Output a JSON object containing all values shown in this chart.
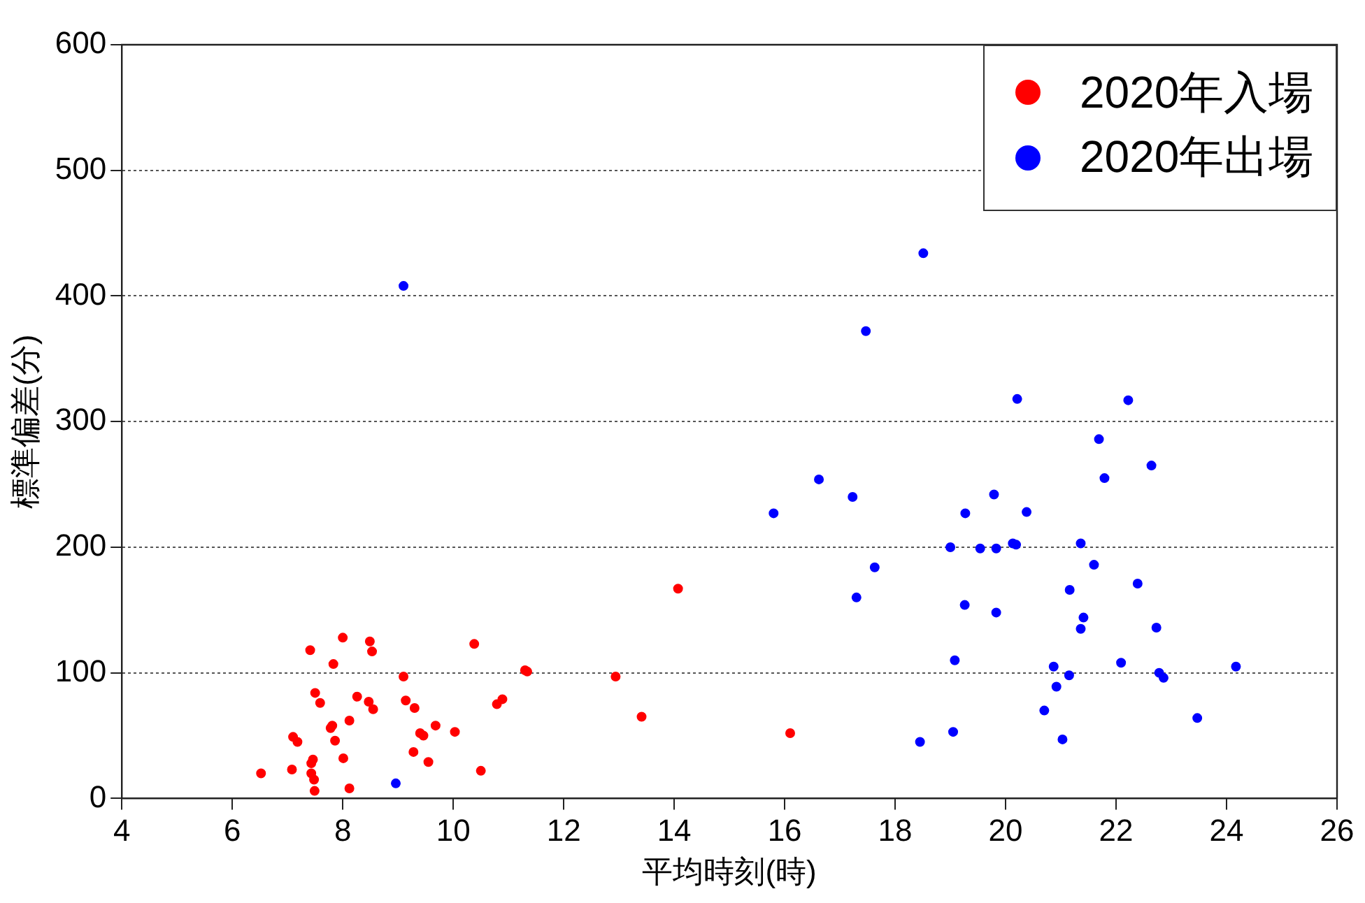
{
  "chart_data": {
    "type": "scatter",
    "xlabel": "平均時刻(時)",
    "ylabel": "標準偏差(分)",
    "xlim": [
      4,
      26
    ],
    "xticks": [
      4,
      6,
      8,
      10,
      12,
      14,
      16,
      18,
      20,
      22,
      24,
      26
    ],
    "ylim": [
      0,
      600
    ],
    "yticks": [
      0,
      100,
      200,
      300,
      400,
      500,
      600
    ],
    "grid": "y",
    "legend": "top right",
    "marker": "circle",
    "series": [
      {
        "name": "2020年入場",
        "color": "#ff0000",
        "x": [
          6.52,
          7.08,
          7.1,
          7.18,
          7.41,
          7.43,
          7.46,
          7.43,
          7.48,
          7.49,
          7.5,
          7.59,
          7.83,
          8.0,
          7.81,
          7.78,
          7.86,
          8.12,
          8.01,
          8.12,
          8.26,
          8.49,
          8.53,
          8.47,
          8.55,
          9.1,
          9.14,
          9.3,
          9.28,
          9.4,
          9.46,
          9.55,
          9.68,
          10.03,
          10.38,
          10.5,
          10.79,
          10.89,
          11.3,
          11.34,
          12.94,
          14.07,
          13.41,
          16.1
        ],
        "values": [
          20,
          23,
          49,
          45,
          118,
          28,
          31,
          20,
          15,
          6,
          84,
          76,
          107,
          128,
          58,
          56,
          46,
          62,
          32,
          8,
          81,
          125,
          117,
          77,
          71,
          97,
          78,
          72,
          37,
          52,
          50,
          29,
          58,
          53,
          123,
          22,
          75,
          79,
          102,
          101,
          97,
          167,
          65,
          52
        ]
      },
      {
        "name": "2020年出場",
        "color": "#0000ff",
        "x": [
          8.96,
          9.1,
          18.51,
          17.47,
          20.21,
          16.62,
          17.23,
          15.8,
          22.22,
          21.69,
          22.64,
          21.79,
          19.79,
          19.27,
          20.38,
          19.0,
          19.54,
          19.83,
          20.13,
          20.19,
          21.36,
          21.6,
          22.39,
          21.16,
          19.26,
          19.83,
          21.41,
          21.36,
          22.73,
          19.08,
          20.87,
          22.09,
          24.17,
          22.78,
          22.86,
          21.15,
          20.92,
          20.7,
          23.47,
          19.05,
          18.45,
          21.03,
          17.63,
          17.3
        ],
        "values": [
          12,
          408,
          434,
          372,
          318,
          254,
          240,
          227,
          317,
          286,
          265,
          255,
          242,
          227,
          228,
          200,
          199,
          199,
          203,
          202,
          203,
          186,
          171,
          166,
          154,
          148,
          144,
          135,
          136,
          110,
          105,
          108,
          105,
          100,
          96,
          98,
          89,
          70,
          64,
          53,
          45,
          47,
          184,
          160
        ]
      }
    ]
  }
}
